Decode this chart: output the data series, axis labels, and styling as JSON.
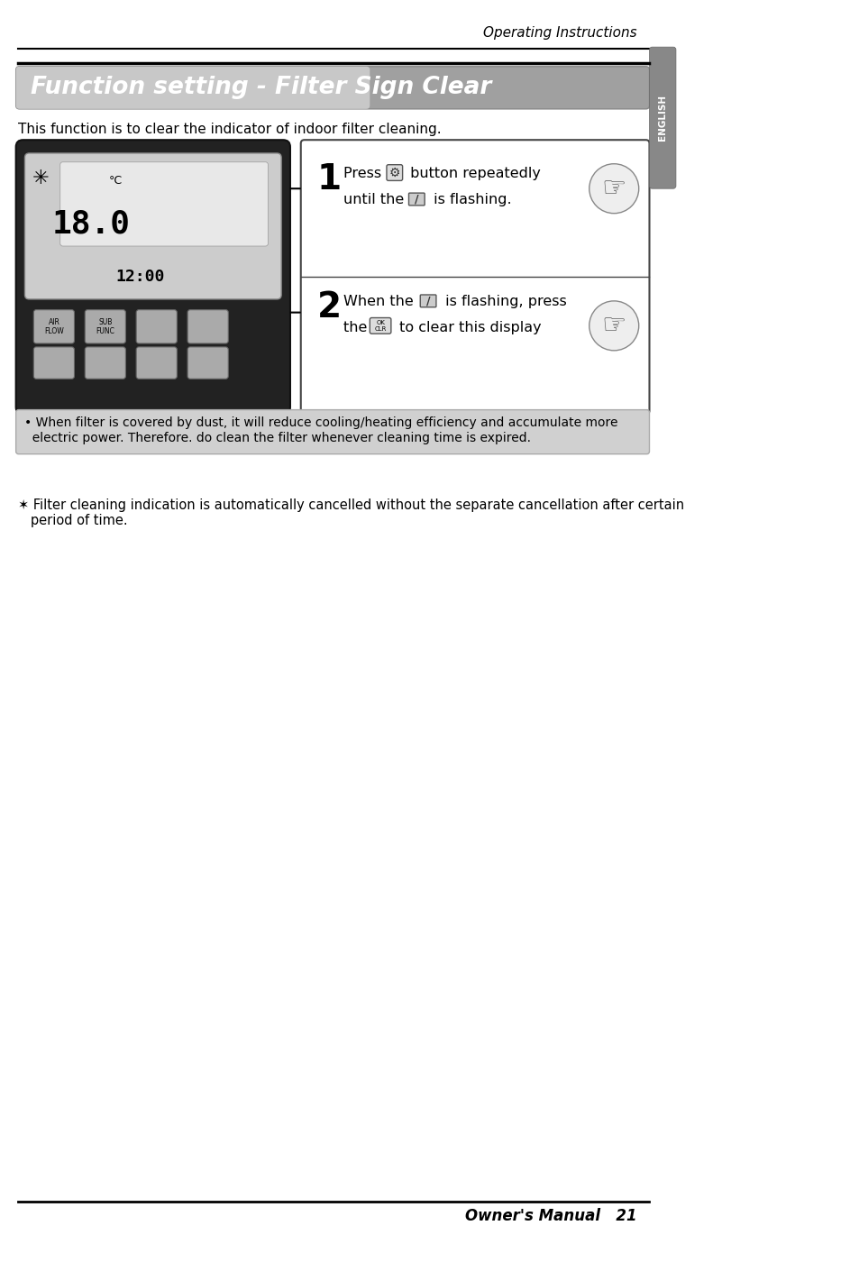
{
  "page_title": "Operating Instructions",
  "section_title": "Function setting - Filter Sign Clear",
  "intro_text": "This function is to clear the indicator of indoor filter cleaning.",
  "step1_number": "1",
  "step1_text": "Press  button repeatedly\nuntil the   is flashing.",
  "step2_number": "2",
  "step2_text": "When the   is flashing, press\nthe   to clear this display",
  "note_text": "• When filter is covered by dust, it will reduce cooling/heating efficiency and accumulate more\n  electric power. Therefore. do clean the filter whenever cleaning time is expired.",
  "footnote_text": "✶ Filter cleaning indication is automatically cancelled without the separate cancellation after certain\n   period of time.",
  "footer_text": "Owner's Manual   21",
  "english_tab": "ENGLISH",
  "bg_color": "#ffffff",
  "header_bar_color": "#888888",
  "section_bg_color": "#b0b0b0",
  "section_title_color": "#ffffff",
  "note_bg_color": "#d8d8d8",
  "border_color": "#333333",
  "tab_color": "#888888"
}
